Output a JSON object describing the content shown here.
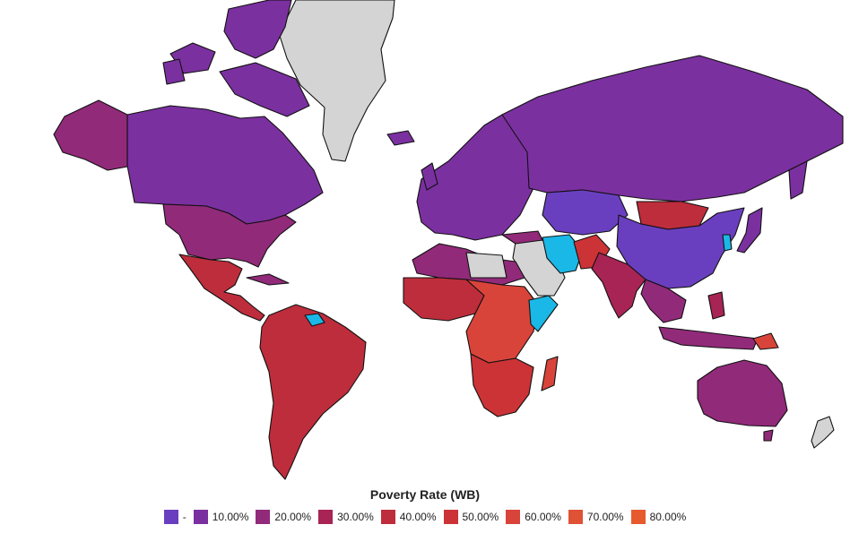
{
  "legend": {
    "title": "Poverty Rate (WB)",
    "items": [
      {
        "label": "-",
        "color": "#6a3fbf"
      },
      {
        "label": "10.00%",
        "color": "#7b30a0"
      },
      {
        "label": "20.00%",
        "color": "#922a7a"
      },
      {
        "label": "30.00%",
        "color": "#a82455"
      },
      {
        "label": "40.00%",
        "color": "#be2d3c"
      },
      {
        "label": "50.00%",
        "color": "#cc3336"
      },
      {
        "label": "60.00%",
        "color": "#d9443a"
      },
      {
        "label": "70.00%",
        "color": "#df5236"
      },
      {
        "label": "80.00%",
        "color": "#e65a2e"
      }
    ]
  },
  "colors": {
    "no_data": "#d4d4d4",
    "highlight": "#1ab8e6",
    "border": "#111111"
  },
  "regions": [
    {
      "name": "canada",
      "bin": "10.00%"
    },
    {
      "name": "usa",
      "bin": "20.00%"
    },
    {
      "name": "alaska",
      "bin": "20.00%"
    },
    {
      "name": "mexico-central-america",
      "bin": "40.00%"
    },
    {
      "name": "south-america",
      "bin": "40.00%"
    },
    {
      "name": "greenland",
      "bin": "no_data"
    },
    {
      "name": "europe",
      "bin": "10.00%"
    },
    {
      "name": "russia",
      "bin": "10.00%"
    },
    {
      "name": "china",
      "bin": "-"
    },
    {
      "name": "mongolia",
      "bin": "40.00%"
    },
    {
      "name": "central-asia",
      "bin": "-"
    },
    {
      "name": "middle-east",
      "bin": "no_data"
    },
    {
      "name": "iran",
      "bin": "highlight"
    },
    {
      "name": "india",
      "bin": "30.00%"
    },
    {
      "name": "southeast-asia",
      "bin": "20.00%"
    },
    {
      "name": "north-africa",
      "bin": "20.00%"
    },
    {
      "name": "central-africa",
      "bin": "60.00%"
    },
    {
      "name": "southern-africa",
      "bin": "50.00%"
    },
    {
      "name": "australia",
      "bin": "20.00%"
    },
    {
      "name": "new-zealand",
      "bin": "no_data"
    }
  ]
}
